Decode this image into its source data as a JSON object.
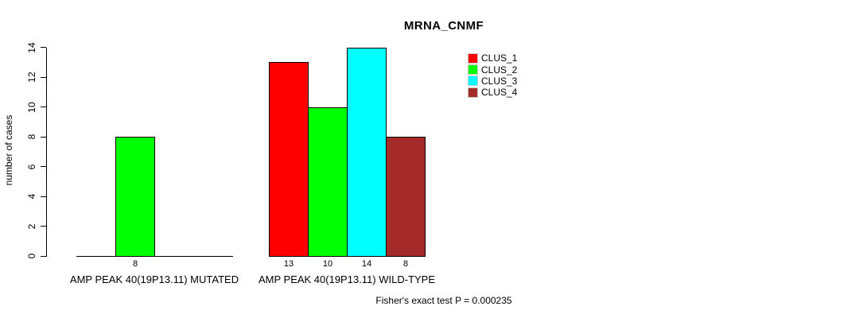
{
  "chart_data": {
    "type": "bar",
    "title": "MRNA_CNMF",
    "xlabel": "",
    "ylabel": "number of cases",
    "ylim": [
      0,
      14
    ],
    "yticks": [
      0,
      2,
      4,
      6,
      8,
      10,
      12,
      14
    ],
    "grid": false,
    "legend_position": "top-right",
    "categories": [
      "AMP PEAK 40(19P13.11) MUTATED",
      "AMP PEAK 40(19P13.11) WILD-TYPE"
    ],
    "series": [
      {
        "name": "CLUS_1",
        "color": "#ff0000",
        "values": [
          0,
          13
        ]
      },
      {
        "name": "CLUS_2",
        "color": "#00ff00",
        "values": [
          8,
          10
        ]
      },
      {
        "name": "CLUS_3",
        "color": "#00ffff",
        "values": [
          0,
          14
        ]
      },
      {
        "name": "CLUS_4",
        "color": "#a52a2a",
        "values": [
          0,
          8
        ]
      }
    ],
    "bar_value_labels_visible": [
      "8",
      "13",
      "10",
      "14",
      "8"
    ],
    "annotation": "Fisher's exact test P = 0.000235"
  }
}
